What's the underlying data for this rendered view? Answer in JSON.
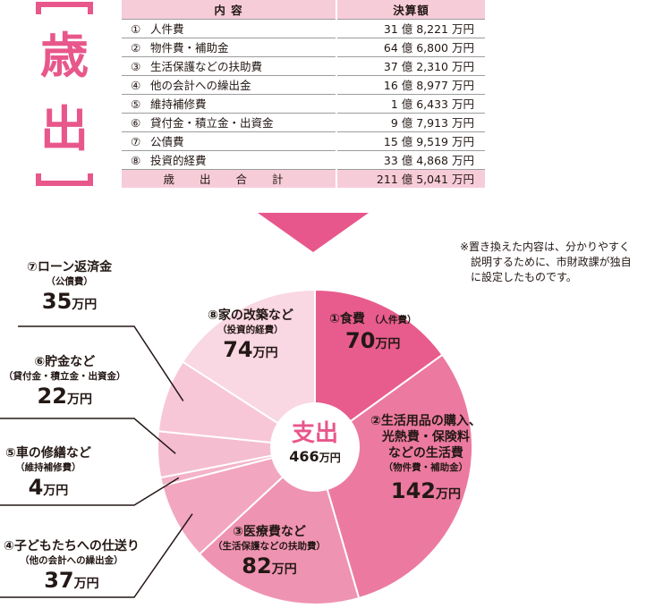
{
  "side_label": "歳出",
  "table": {
    "headers": [
      "内 容",
      "決算額"
    ],
    "rows": [
      {
        "num": "①",
        "item": "人件費",
        "amount": "31 億 8,221 万円"
      },
      {
        "num": "②",
        "item": "物件費・補助金",
        "amount": "64 億 6,800 万円"
      },
      {
        "num": "③",
        "item": "生活保護などの扶助費",
        "amount": "37 億 2,310 万円"
      },
      {
        "num": "④",
        "item": "他の会計への繰出金",
        "amount": "16 億 8,977 万円"
      },
      {
        "num": "⑤",
        "item": "維持補修費",
        "amount": "1 億 6,433 万円"
      },
      {
        "num": "⑥",
        "item": "貸付金・積立金・出資金",
        "amount": "9 億 7,913 万円"
      },
      {
        "num": "⑦",
        "item": "公債費",
        "amount": "15 億 9,519 万円"
      },
      {
        "num": "⑧",
        "item": "投資的経費",
        "amount": "33 億 4,868 万円"
      }
    ],
    "total": {
      "label": "歳 出 合 計",
      "amount": "211 億 5,041 万円"
    }
  },
  "note": [
    "※置き換えた内容は、分かりやすく",
    "説明するために、市財政課が独自",
    "に設定したものです。"
  ],
  "chart_data": {
    "type": "pie",
    "center": {
      "title": "支出",
      "value": "466",
      "unit": "万円"
    },
    "unit": "万円",
    "slices": [
      {
        "id": 1,
        "label": "①食費",
        "sub": "（人件費）",
        "value": 70,
        "color": "#e85c8d"
      },
      {
        "id": 2,
        "label": "②生活用品の購入、光熱費・保険料などの生活費",
        "sub": "（物件費・補助金）",
        "value": 142,
        "color": "#ec7aa0"
      },
      {
        "id": 3,
        "label": "③医療費など",
        "sub": "（生活保護などの扶助費）",
        "value": 82,
        "color": "#ef93b2"
      },
      {
        "id": 4,
        "label": "④子どもたちへの仕送り",
        "sub": "（他の会計への繰出金）",
        "value": 37,
        "color": "#f2a6c0"
      },
      {
        "id": 5,
        "label": "⑤車の修繕など",
        "sub": "（維持補修費）",
        "value": 4,
        "color": "#f4b3c9"
      },
      {
        "id": 6,
        "label": "⑥貯金など",
        "sub": "（貸付金・積立金・出資金）",
        "value": 22,
        "color": "#f5bdd0"
      },
      {
        "id": 7,
        "label": "⑦ローン返済金",
        "sub": "（公債費）",
        "value": 35,
        "color": "#f7c7d8"
      },
      {
        "id": 8,
        "label": "⑧家の改築など",
        "sub": "（投資的経費）",
        "value": 74,
        "color": "#f9d7e3"
      }
    ]
  }
}
